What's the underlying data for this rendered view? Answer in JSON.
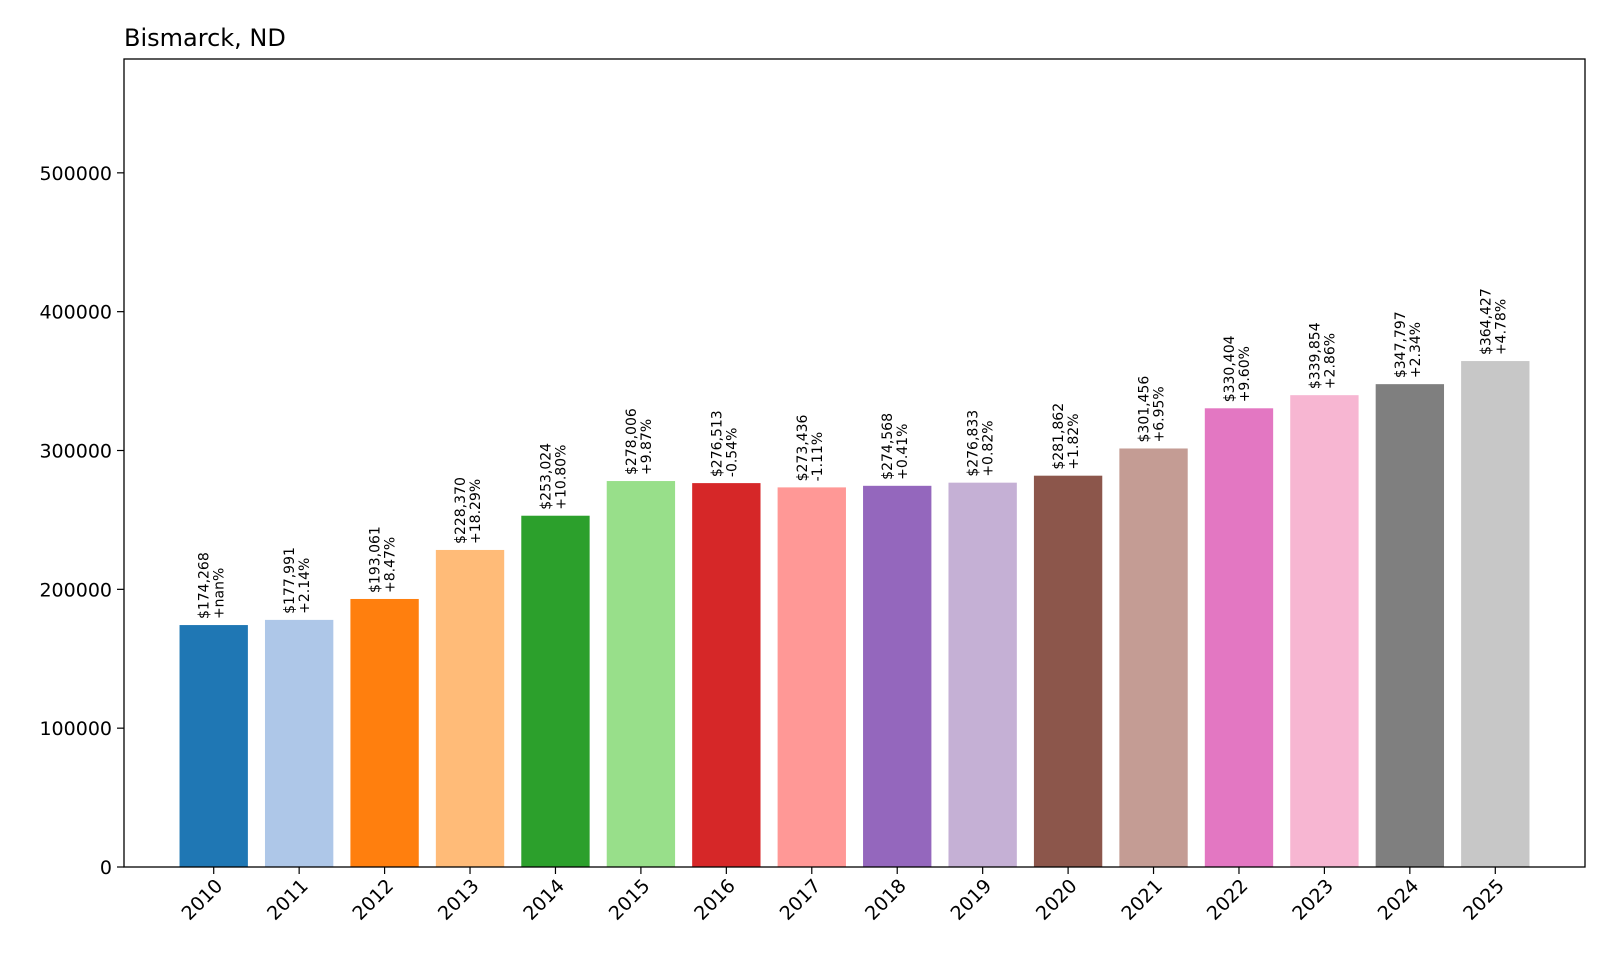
{
  "chart_data": {
    "type": "bar",
    "title": "Bismarck, ND",
    "xlabel": "",
    "ylabel": "",
    "categories": [
      "2010",
      "2011",
      "2012",
      "2013",
      "2014",
      "2015",
      "2016",
      "2017",
      "2018",
      "2019",
      "2020",
      "2021",
      "2022",
      "2023",
      "2024",
      "2025"
    ],
    "values": [
      174268,
      177991,
      193061,
      228370,
      253024,
      278006,
      276513,
      273436,
      274568,
      276833,
      281862,
      301456,
      330404,
      339854,
      347797,
      364427
    ],
    "value_labels": [
      "$174,268",
      "$177,991",
      "$193,061",
      "$228,370",
      "$253,024",
      "$278,006",
      "$276,513",
      "$273,436",
      "$274,568",
      "$276,833",
      "$281,862",
      "$301,456",
      "$330,404",
      "$339,854",
      "$347,797",
      "$364,427"
    ],
    "change_labels": [
      "+nan%",
      "+2.14%",
      "+8.47%",
      "+18.29%",
      "+10.80%",
      "+9.87%",
      "-0.54%",
      "-1.11%",
      "+0.41%",
      "+0.82%",
      "+1.82%",
      "+6.95%",
      "+9.60%",
      "+2.86%",
      "+2.34%",
      "+4.78%"
    ],
    "colors": [
      "#1f77b4",
      "#aec7e8",
      "#ff7f0e",
      "#ffbb78",
      "#2ca02c",
      "#98df8a",
      "#d62728",
      "#ff9896",
      "#9467bd",
      "#c5b0d5",
      "#8c564b",
      "#c49c94",
      "#e377c2",
      "#f7b6d2",
      "#7f7f7f",
      "#c7c7c7"
    ],
    "ylim": [
      0,
      582000
    ],
    "yticks": [
      0,
      100000,
      200000,
      300000,
      400000,
      500000
    ],
    "ytick_labels": [
      "0",
      "100000",
      "200000",
      "300000",
      "400000",
      "500000"
    ],
    "grid": false,
    "legend": "none"
  }
}
